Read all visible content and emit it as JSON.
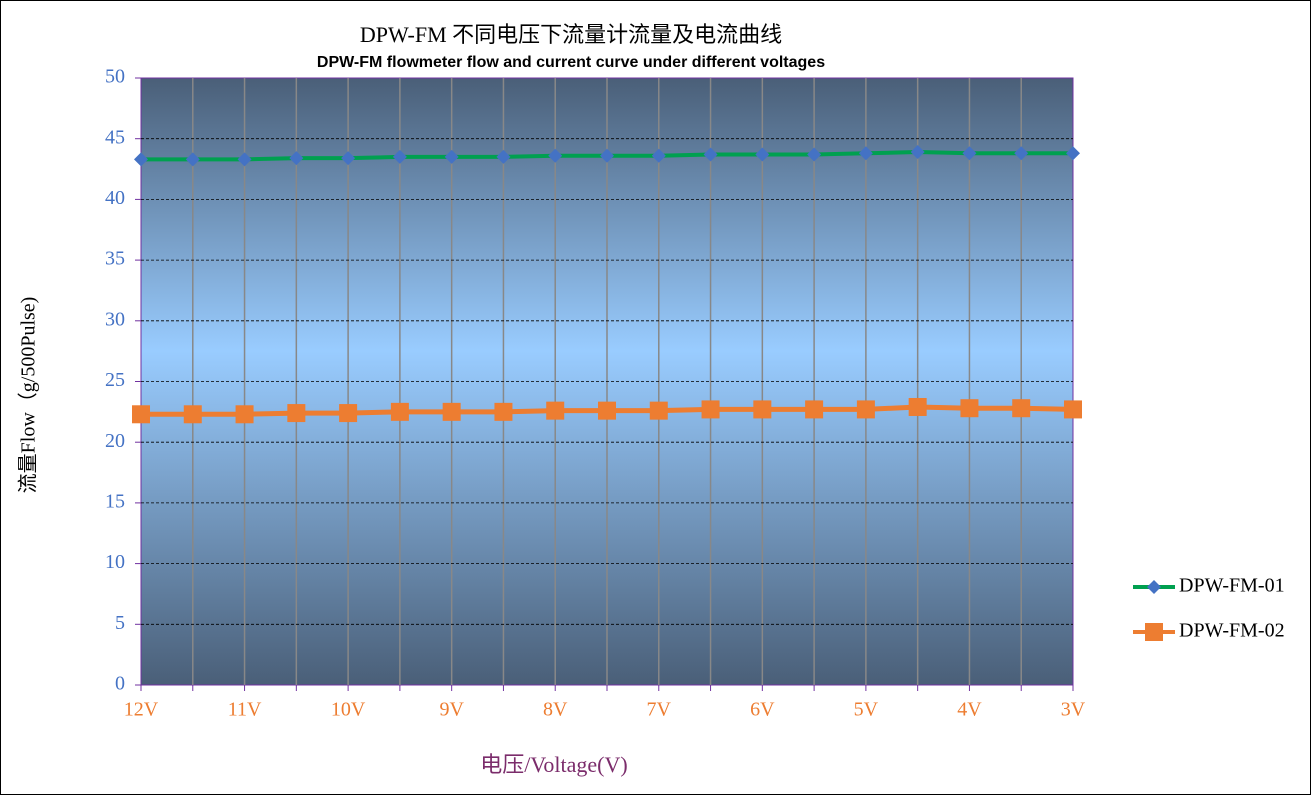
{
  "chart_data": {
    "type": "line",
    "title": "DPW-FM 不同电压下流量计流量及电流曲线",
    "subtitle": "DPW-FM flowmeter flow and current curve under different voltages",
    "x_label": "电压/Voltage(V)",
    "y_label": "流量Flow（g/500Pulse)",
    "categories": [
      "12V",
      null,
      "11V",
      null,
      "10V",
      null,
      "9V",
      null,
      "8V",
      null,
      "7V",
      null,
      "6V",
      null,
      "5V",
      null,
      "4V",
      null,
      "3V"
    ],
    "series": [
      {
        "name": "DPW-FM-01",
        "color": "#00a050",
        "marker_color": "#4472c4",
        "marker": "diamond",
        "values": [
          43.3,
          43.3,
          43.3,
          43.4,
          43.4,
          43.5,
          43.5,
          43.5,
          43.6,
          43.6,
          43.6,
          43.7,
          43.7,
          43.7,
          43.8,
          43.9,
          43.8,
          43.8,
          43.8
        ]
      },
      {
        "name": "DPW-FM-02",
        "color": "#ed7d31",
        "marker_color": "#ed7d31",
        "marker": "square",
        "values": [
          22.3,
          22.3,
          22.3,
          22.4,
          22.4,
          22.5,
          22.5,
          22.5,
          22.6,
          22.6,
          22.6,
          22.7,
          22.7,
          22.7,
          22.7,
          22.9,
          22.8,
          22.8,
          22.7
        ]
      }
    ],
    "ylim": [
      0,
      50
    ],
    "yticks": [
      0,
      5,
      10,
      15,
      20,
      25,
      30,
      35,
      40,
      45,
      50
    ],
    "grid": true,
    "legend": "right"
  }
}
